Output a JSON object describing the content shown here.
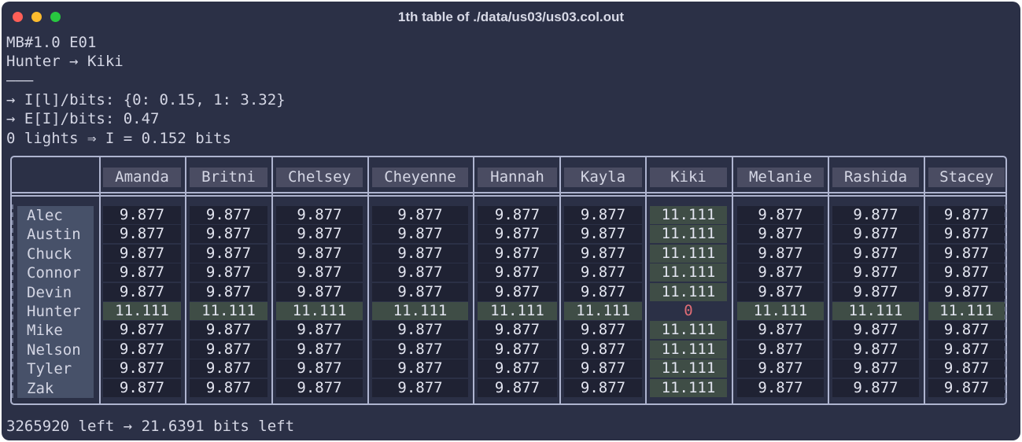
{
  "window": {
    "title": "1th table of ./data/us03/us03.col.out"
  },
  "header_lines": [
    "MB#1.0 E01",
    "Hunter → Kiki",
    "———",
    "→ I[l]/bits: {0: 0.15, 1: 3.32}",
    "→ E[I]/bits: 0.47",
    "0 lights ⇒ I = 0.152 bits"
  ],
  "table": {
    "columns": [
      "Amanda",
      "Britni",
      "Chelsey",
      "Cheyenne",
      "Hannah",
      "Kayla",
      "Kiki",
      "Melanie",
      "Rashida",
      "Stacey"
    ],
    "rows": [
      {
        "name": "Alec",
        "values": [
          "9.877",
          "9.877",
          "9.877",
          "9.877",
          "9.877",
          "9.877",
          "11.111",
          "9.877",
          "9.877",
          "9.877"
        ]
      },
      {
        "name": "Austin",
        "values": [
          "9.877",
          "9.877",
          "9.877",
          "9.877",
          "9.877",
          "9.877",
          "11.111",
          "9.877",
          "9.877",
          "9.877"
        ]
      },
      {
        "name": "Chuck",
        "values": [
          "9.877",
          "9.877",
          "9.877",
          "9.877",
          "9.877",
          "9.877",
          "11.111",
          "9.877",
          "9.877",
          "9.877"
        ]
      },
      {
        "name": "Connor",
        "values": [
          "9.877",
          "9.877",
          "9.877",
          "9.877",
          "9.877",
          "9.877",
          "11.111",
          "9.877",
          "9.877",
          "9.877"
        ]
      },
      {
        "name": "Devin",
        "values": [
          "9.877",
          "9.877",
          "9.877",
          "9.877",
          "9.877",
          "9.877",
          "11.111",
          "9.877",
          "9.877",
          "9.877"
        ]
      },
      {
        "name": "Hunter",
        "values": [
          "11.111",
          "11.111",
          "11.111",
          "11.111",
          "11.111",
          "11.111",
          "0",
          "11.111",
          "11.111",
          "11.111"
        ]
      },
      {
        "name": "Mike",
        "values": [
          "9.877",
          "9.877",
          "9.877",
          "9.877",
          "9.877",
          "9.877",
          "11.111",
          "9.877",
          "9.877",
          "9.877"
        ]
      },
      {
        "name": "Nelson",
        "values": [
          "9.877",
          "9.877",
          "9.877",
          "9.877",
          "9.877",
          "9.877",
          "11.111",
          "9.877",
          "9.877",
          "9.877"
        ]
      },
      {
        "name": "Tyler",
        "values": [
          "9.877",
          "9.877",
          "9.877",
          "9.877",
          "9.877",
          "9.877",
          "11.111",
          "9.877",
          "9.877",
          "9.877"
        ]
      },
      {
        "name": "Zak",
        "values": [
          "9.877",
          "9.877",
          "9.877",
          "9.877",
          "9.877",
          "9.877",
          "11.111",
          "9.877",
          "9.877",
          "9.877"
        ]
      }
    ]
  },
  "footer": "3265920 left → 21.6391 bits left",
  "colors": {
    "background": "#2b3046",
    "text": "#d4d6e4",
    "highlight_cell": "#3f4d46",
    "normal_cell": "#1f2233",
    "header_cell": "#4a4c62",
    "zero_value": "#e06c75",
    "border": "#aeb4cf"
  }
}
